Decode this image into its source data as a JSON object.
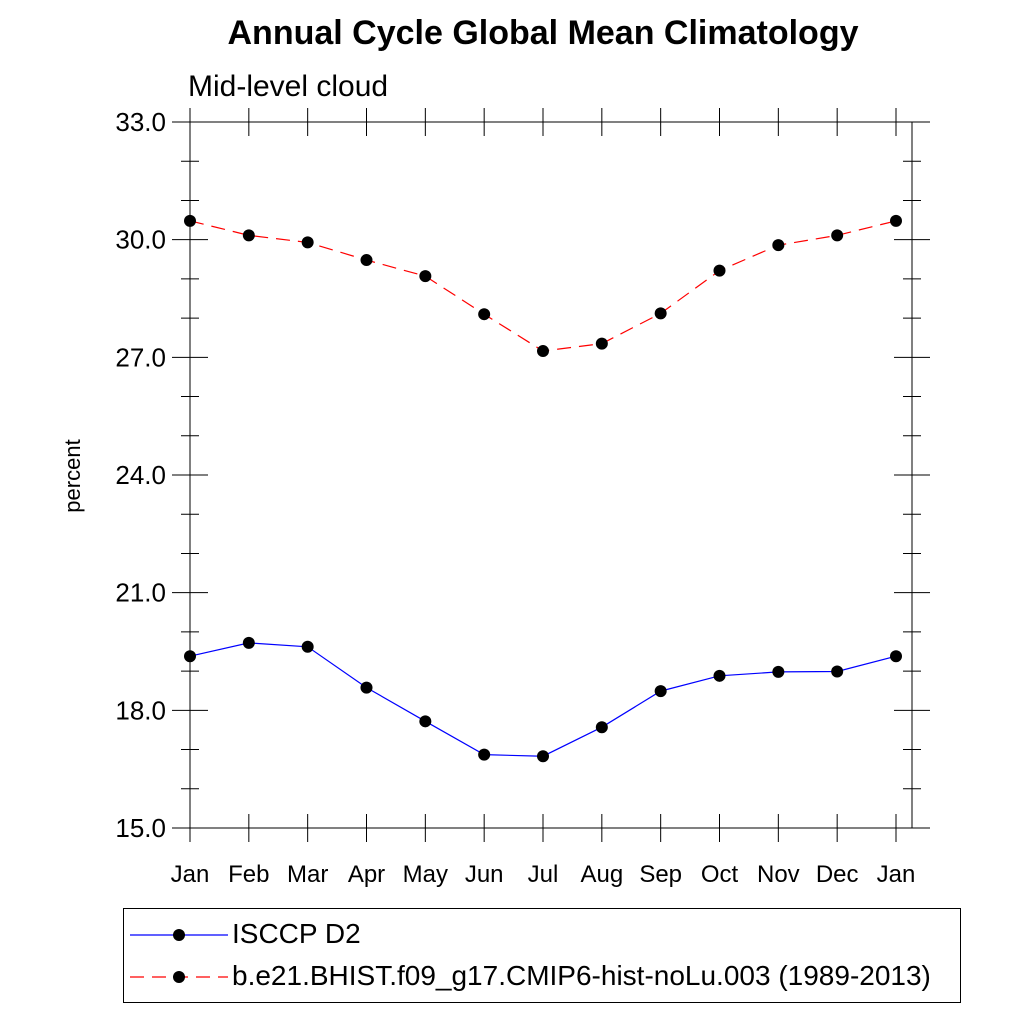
{
  "chart_data": {
    "type": "line",
    "title": "Annual Cycle Global Mean Climatology",
    "subtitle": "Mid-level cloud",
    "xlabel": "",
    "ylabel": "percent",
    "categories": [
      "Jan",
      "Feb",
      "Mar",
      "Apr",
      "May",
      "Jun",
      "Jul",
      "Aug",
      "Sep",
      "Oct",
      "Nov",
      "Dec",
      "Jan"
    ],
    "ylim": [
      15.0,
      33.0
    ],
    "yticks": [
      "15.0",
      "18.0",
      "21.0",
      "24.0",
      "27.0",
      "30.0",
      "33.0"
    ],
    "yminor_step": 1.0,
    "series": [
      {
        "name": "ISCCP D2",
        "color": "#0000ff",
        "dash": "solid",
        "values": [
          19.38,
          19.72,
          19.62,
          18.58,
          17.72,
          16.87,
          16.83,
          17.57,
          18.49,
          18.88,
          18.98,
          18.99,
          19.38
        ]
      },
      {
        "name": "b.e21.BHIST.f09_g17.CMIP6-hist-noLu.003 (1989-2013)",
        "color": "#ff0000",
        "dash": "dashed",
        "values": [
          30.48,
          30.11,
          29.93,
          29.48,
          29.07,
          28.1,
          27.16,
          27.35,
          28.12,
          29.21,
          29.86,
          30.11,
          30.48
        ]
      }
    ]
  }
}
